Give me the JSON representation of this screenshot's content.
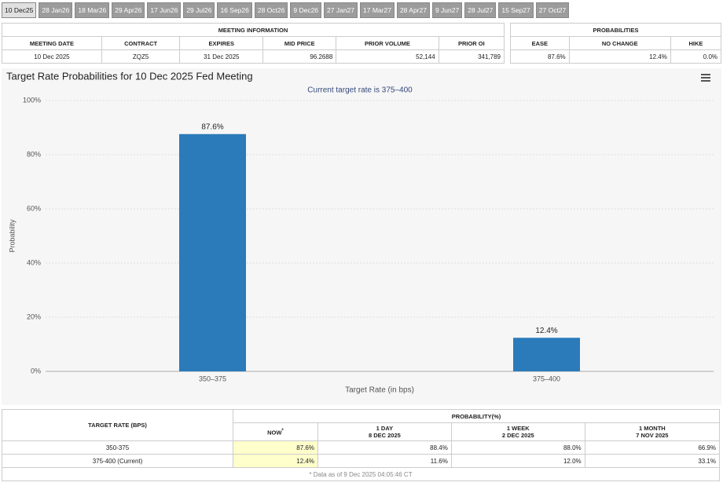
{
  "tabs": [
    "10 Dec25",
    "28 Jan26",
    "18 Mar26",
    "29 Apr26",
    "17 Jun26",
    "29 Jul26",
    "16 Sep26",
    "28 Oct26",
    "9 Dec26",
    "27 Jan27",
    "17 Mar27",
    "28 Apr27",
    "9 Jun27",
    "28 Jul27",
    "15 Sep27",
    "27 Oct27"
  ],
  "meeting_info": {
    "title": "MEETING INFORMATION",
    "headers": [
      "MEETING DATE",
      "CONTRACT",
      "EXPIRES",
      "MID PRICE",
      "PRIOR VOLUME",
      "PRIOR OI"
    ],
    "row": [
      "10 Dec 2025",
      "ZQZ5",
      "31 Dec 2025",
      "96.2688",
      "52,144",
      "341,789"
    ]
  },
  "probabilities": {
    "title": "PROBABILITIES",
    "headers": [
      "EASE",
      "NO CHANGE",
      "HIKE"
    ],
    "row": [
      "87.6%",
      "12.4%",
      "0.0%"
    ]
  },
  "chart_data": {
    "type": "bar",
    "title": "Target Rate Probabilities for 10 Dec 2025 Fed Meeting",
    "subtitle": "Current target rate is 375–400",
    "x_label": "Target Rate (in bps)",
    "y_label": "Probability",
    "categories": [
      "350–375",
      "375–400"
    ],
    "values": [
      87.6,
      12.4
    ],
    "value_labels": [
      "87.6%",
      "12.4%"
    ],
    "color": "#2b7bbb",
    "ylim": [
      0,
      100
    ],
    "yticks": [
      {
        "value": 0,
        "label": "0%"
      },
      {
        "value": 20,
        "label": "20%"
      },
      {
        "value": 40,
        "label": "40%"
      },
      {
        "value": 60,
        "label": "60%"
      },
      {
        "value": 80,
        "label": "80%"
      },
      {
        "value": 100,
        "label": "100%"
      }
    ],
    "grid": true
  },
  "rate_table": {
    "label_header": "TARGET RATE (BPS)",
    "group_header": "PROBABILITY(%)",
    "columns": [
      {
        "label": "NOW",
        "note": "*"
      },
      {
        "label": "1 DAY",
        "date": "8 DEC 2025"
      },
      {
        "label": "1 WEEK",
        "date": "2 DEC 2025"
      },
      {
        "label": "1 MONTH",
        "date": "7 NOV 2025"
      }
    ],
    "rows": [
      [
        "350-375",
        "87.6%",
        "88.4%",
        "88.0%",
        "66.9%"
      ],
      [
        "375-400 (Current)",
        "12.4%",
        "11.6%",
        "12.0%",
        "33.1%"
      ]
    ],
    "footnote": "* Data as of 9 Dec 2025 04:05:46 CT"
  }
}
